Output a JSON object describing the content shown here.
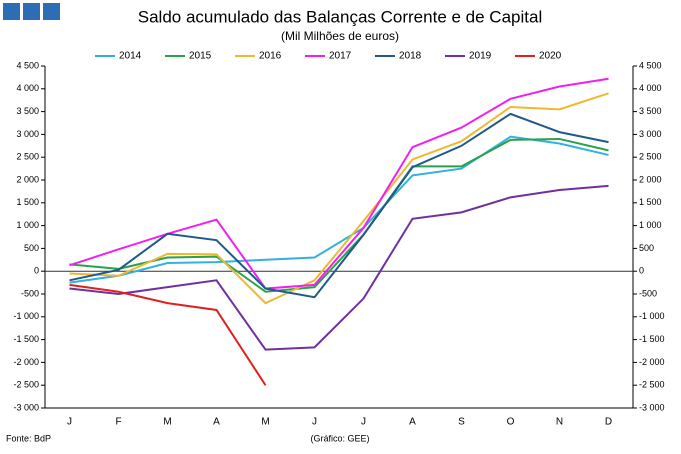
{
  "chart_data": {
    "type": "line",
    "title": "Saldo acumulado das Balanças Corrente e de Capital",
    "subtitle": "(Mil Milhões de euros)",
    "source": "Fonte: BdP",
    "credit": "(Gráfico: GEE)",
    "categories": [
      "J",
      "F",
      "M",
      "A",
      "M",
      "J",
      "J",
      "A",
      "S",
      "O",
      "N",
      "D"
    ],
    "ylim": [
      -3000,
      4500
    ],
    "yticks": [
      {
        "value": -3000,
        "label": "-3 000"
      },
      {
        "value": -2500,
        "label": "-2 500"
      },
      {
        "value": -2000,
        "label": "-2 000"
      },
      {
        "value": -1500,
        "label": "-1 500"
      },
      {
        "value": -1000,
        "label": "-1 000"
      },
      -500,
      0,
      500,
      {
        "value": 1000,
        "label": "1 000"
      },
      {
        "value": 1500,
        "label": "1 500"
      },
      {
        "value": 2000,
        "label": "2 000"
      },
      {
        "value": 2500,
        "label": "2 500"
      },
      {
        "value": 3000,
        "label": "3 000"
      },
      {
        "value": 3500,
        "label": "3 500"
      },
      {
        "value": 4000,
        "label": "4 000"
      },
      {
        "value": 4500,
        "label": "4 500"
      }
    ],
    "y2lim": [
      -3000,
      4500
    ],
    "y2ticks": [
      {
        "value": -3000,
        "label": "-3 000"
      },
      {
        "value": -2500,
        "label": "-2 500"
      },
      {
        "value": -2000,
        "label": "-2 000"
      },
      {
        "value": -1500,
        "label": "-1 500"
      },
      {
        "value": -1000,
        "label": "-1 000"
      },
      -500,
      0,
      500,
      {
        "value": 1000,
        "label": "1 000"
      },
      {
        "value": 1500,
        "label": "1 500"
      },
      {
        "value": 2000,
        "label": "2 000"
      },
      {
        "value": 2500,
        "label": "2 500"
      },
      {
        "value": 3000,
        "label": "3 000"
      },
      {
        "value": 3500,
        "label": "3 500"
      },
      {
        "value": 4000,
        "label": "4 000"
      },
      {
        "value": 4500,
        "label": "4 500"
      }
    ],
    "grid": false,
    "legend": "top",
    "series": [
      {
        "name": "2014",
        "color": "#33b0e0",
        "values": [
          -250,
          -100,
          180,
          200,
          250,
          300,
          950,
          2100,
          2250,
          2950,
          2800,
          2550
        ]
      },
      {
        "name": "2015",
        "color": "#2aa24a",
        "values": [
          150,
          50,
          300,
          320,
          -450,
          -350,
          800,
          2300,
          2300,
          2880,
          2900,
          2650
        ]
      },
      {
        "name": "2016",
        "color": "#f0b830",
        "values": [
          -50,
          -100,
          380,
          370,
          -700,
          -200,
          1100,
          2450,
          2850,
          3600,
          3550,
          3900
        ]
      },
      {
        "name": "2017",
        "color": "#f020f0",
        "values": [
          130,
          480,
          820,
          1130,
          -380,
          -300,
          950,
          2720,
          3150,
          3780,
          4050,
          4220
        ]
      },
      {
        "name": "2018",
        "color": "#1f5a8a",
        "values": [
          -200,
          30,
          820,
          680,
          -380,
          -570,
          800,
          2280,
          2750,
          3450,
          3050,
          2830
        ]
      },
      {
        "name": "2019",
        "color": "#7030a0",
        "values": [
          -380,
          -500,
          -350,
          -200,
          -1720,
          -1670,
          -600,
          1150,
          1290,
          1620,
          1780,
          1870
        ]
      },
      {
        "name": "2020",
        "color": "#e02020",
        "values": [
          -300,
          -450,
          -700,
          -850,
          -2500,
          null,
          null,
          null,
          null,
          null,
          null,
          null
        ]
      }
    ]
  }
}
